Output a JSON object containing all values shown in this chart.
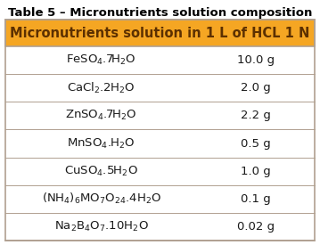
{
  "title": "Table 5 – Micronutrients solution composition",
  "header": "Micronutrients solution in 1 L of HCL 1 N",
  "header_bg": "#F5A623",
  "header_text_color": "#5C3000",
  "title_fontsize": 9.5,
  "header_fontsize": 10.5,
  "row_fontsize": 9.5,
  "table_bg": "#FFFFFF",
  "row_bg": "#FFFFFF",
  "border_color": "#B0A090",
  "text_color": "#1A1A1A",
  "rows": [
    {
      "compound": "FeSO$_4$.7H$_2$O",
      "amount": "10.0 g"
    },
    {
      "compound": "CaCl$_2$.2H$_2$O",
      "amount": "2.0 g"
    },
    {
      "compound": "ZnSO$_4$.7H$_2$O",
      "amount": "2.2 g"
    },
    {
      "compound": "MnSO$_4$.H$_2$O",
      "amount": "0.5 g"
    },
    {
      "compound": "CuSO$_4$.5H$_2$O",
      "amount": "1.0 g"
    },
    {
      "compound": "(NH$_4$)$_6$MO$_7$O$_{24}$.4H$_2$O",
      "amount": "0.1 g"
    },
    {
      "compound": "Na$_2$B$_4$O$_7$.10H$_2$O",
      "amount": "0.02 g"
    }
  ],
  "fig_width": 3.59,
  "fig_height": 2.75,
  "dpi": 100
}
